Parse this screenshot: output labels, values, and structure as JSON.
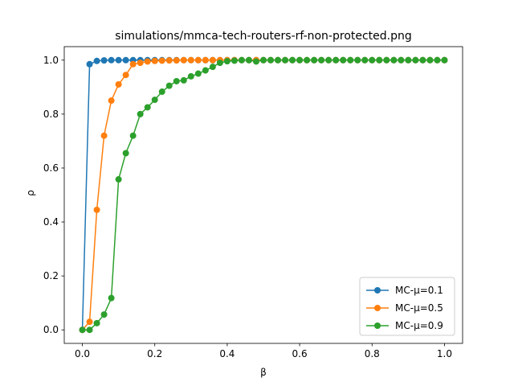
{
  "chart_data": {
    "type": "line",
    "title": "simulations/mmca-tech-routers-rf-non-protected.png",
    "xlabel": "β",
    "ylabel": "ρ",
    "xlim": [
      -0.05,
      1.05
    ],
    "ylim": [
      -0.05,
      1.05
    ],
    "xticks": [
      "0.0",
      "0.2",
      "0.4",
      "0.6",
      "0.8",
      "1.0"
    ],
    "yticks": [
      "0.0",
      "0.2",
      "0.4",
      "0.6",
      "0.8",
      "1.0"
    ],
    "grid": false,
    "legend_position": "lower-right",
    "x": [
      0.0,
      0.02,
      0.04,
      0.06,
      0.08,
      0.1,
      0.12,
      0.14,
      0.16,
      0.18,
      0.2,
      0.22,
      0.24,
      0.26,
      0.28,
      0.3,
      0.32,
      0.34,
      0.36,
      0.38,
      0.4,
      0.42,
      0.44,
      0.46,
      0.48,
      0.5,
      0.52,
      0.54,
      0.56,
      0.58,
      0.6,
      0.62,
      0.64,
      0.66,
      0.68,
      0.7,
      0.72,
      0.74,
      0.76,
      0.78,
      0.8,
      0.82,
      0.84,
      0.86,
      0.88,
      0.9,
      0.92,
      0.94,
      0.96,
      0.98,
      1.0
    ],
    "series": [
      {
        "name": "MC-μ=0.1",
        "color": "#1f77b4",
        "values": [
          0.0,
          0.985,
          0.997,
          0.999,
          1.0,
          1.0,
          1.0,
          1.0,
          1.0,
          1.0,
          1.0,
          1.0,
          1.0,
          1.0,
          1.0,
          1.0,
          1.0,
          1.0,
          1.0,
          1.0,
          1.0,
          1.0,
          1.0,
          1.0,
          1.0,
          1.0,
          1.0,
          1.0,
          1.0,
          1.0,
          1.0,
          1.0,
          1.0,
          1.0,
          1.0,
          1.0,
          1.0,
          1.0,
          1.0,
          1.0,
          1.0,
          1.0,
          1.0,
          1.0,
          1.0,
          1.0,
          1.0,
          1.0,
          1.0,
          1.0,
          1.0
        ]
      },
      {
        "name": "MC-μ=0.5",
        "color": "#ff7f0e",
        "values": [
          0.0,
          0.03,
          0.445,
          0.72,
          0.85,
          0.91,
          0.945,
          0.985,
          0.99,
          0.995,
          0.997,
          0.998,
          0.999,
          0.999,
          1.0,
          1.0,
          1.0,
          1.0,
          1.0,
          1.0,
          1.0,
          1.0,
          1.0,
          1.0,
          1.0,
          1.0,
          1.0,
          1.0,
          1.0,
          1.0,
          1.0,
          1.0,
          1.0,
          1.0,
          1.0,
          1.0,
          1.0,
          1.0,
          1.0,
          1.0,
          1.0,
          1.0,
          1.0,
          1.0,
          1.0,
          1.0,
          1.0,
          1.0,
          1.0,
          1.0,
          1.0
        ]
      },
      {
        "name": "MC-μ=0.9",
        "color": "#2ca02c",
        "values": [
          0.0,
          0.0,
          0.025,
          0.057,
          0.118,
          0.558,
          0.655,
          0.72,
          0.8,
          0.825,
          0.853,
          0.883,
          0.905,
          0.922,
          0.925,
          0.94,
          0.95,
          0.962,
          0.975,
          0.99,
          0.996,
          0.998,
          1.0,
          1.0,
          0.995,
          1.0,
          1.0,
          1.0,
          1.0,
          1.0,
          1.0,
          1.0,
          1.0,
          1.0,
          1.0,
          1.0,
          1.0,
          1.0,
          1.0,
          1.0,
          1.0,
          1.0,
          1.0,
          1.0,
          1.0,
          1.0,
          1.0,
          1.0,
          1.0,
          1.0,
          1.0
        ]
      }
    ]
  }
}
